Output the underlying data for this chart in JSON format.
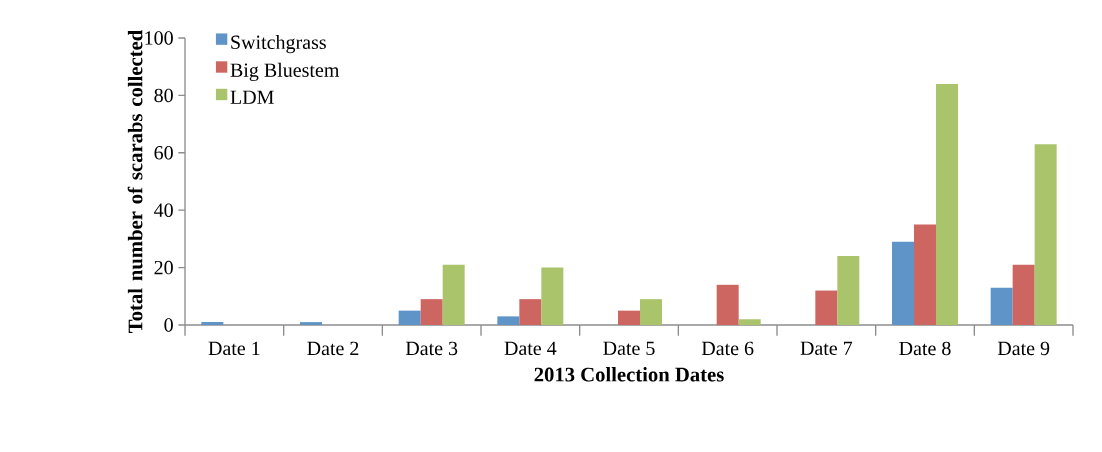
{
  "chart_data": {
    "type": "bar",
    "xlabel": "2013 Collection Dates",
    "ylabel": "Total number of scarabs collected",
    "categories": [
      "Date 1",
      "Date 2",
      "Date 3",
      "Date 4",
      "Date 5",
      "Date 6",
      "Date 7",
      "Date 8",
      "Date 9"
    ],
    "series": [
      {
        "name": "Switchgrass",
        "color": "#5f94c9",
        "values": [
          1,
          1,
          5,
          3,
          0,
          0,
          0,
          29,
          13
        ]
      },
      {
        "name": "Big Bluestem",
        "color": "#cd6660",
        "values": [
          0,
          0,
          9,
          9,
          5,
          14,
          12,
          35,
          21
        ]
      },
      {
        "name": "LDM",
        "color": "#a9c46b",
        "values": [
          0,
          0,
          21,
          20,
          9,
          2,
          24,
          84,
          63
        ]
      }
    ],
    "ylim": [
      0,
      100
    ],
    "yticks": [
      0,
      20,
      40,
      60,
      80,
      100
    ],
    "legend": "top left"
  }
}
